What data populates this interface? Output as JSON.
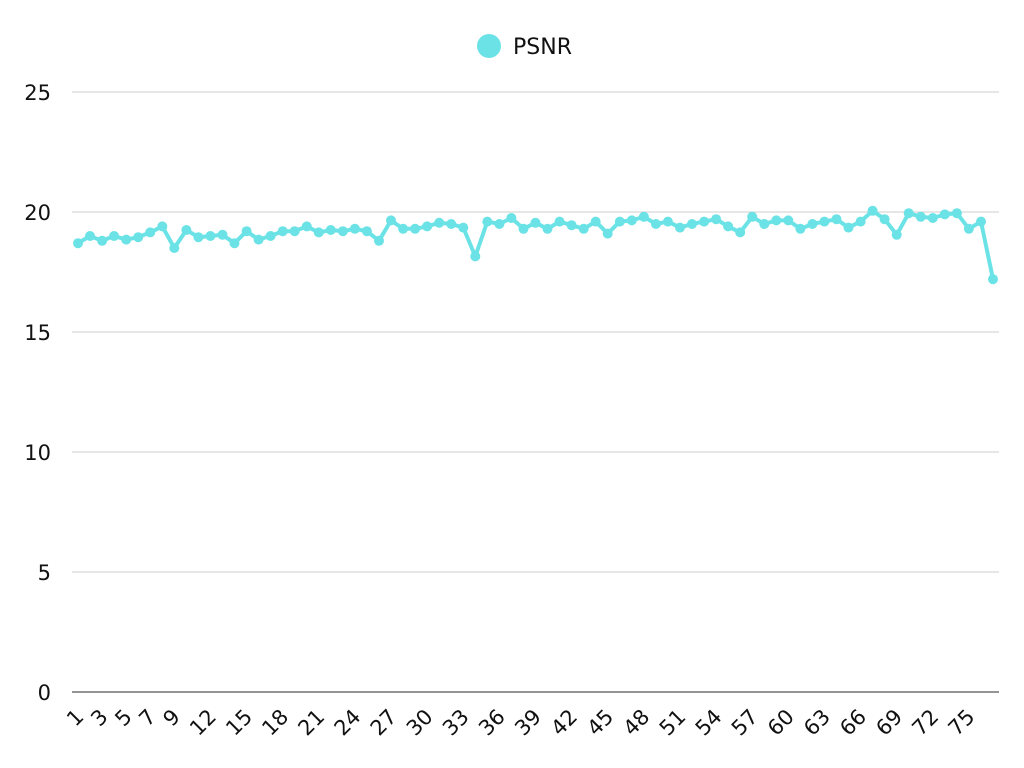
{
  "chart_data": {
    "type": "line",
    "title": "",
    "xlabel": "",
    "ylabel": "",
    "ylim": [
      0,
      25
    ],
    "y_ticks": [
      0,
      5,
      10,
      15,
      20,
      25
    ],
    "x_tick_labels": [
      1,
      3,
      5,
      7,
      9,
      12,
      15,
      18,
      21,
      24,
      27,
      30,
      33,
      36,
      39,
      42,
      45,
      48,
      51,
      54,
      57,
      60,
      63,
      66,
      69,
      72,
      75
    ],
    "grid": true,
    "legend_position": "top-center",
    "color": "#6be3e6",
    "series": [
      {
        "name": "PSNR",
        "x": [
          1,
          2,
          3,
          4,
          5,
          6,
          7,
          8,
          9,
          10,
          11,
          12,
          13,
          14,
          15,
          16,
          17,
          18,
          19,
          20,
          21,
          22,
          23,
          24,
          25,
          26,
          27,
          28,
          29,
          30,
          31,
          32,
          33,
          34,
          35,
          36,
          37,
          38,
          39,
          40,
          41,
          42,
          43,
          44,
          45,
          46,
          47,
          48,
          49,
          50,
          51,
          52,
          53,
          54,
          55,
          56,
          57,
          58,
          59,
          60,
          61,
          62,
          63,
          64,
          65,
          66,
          67,
          68,
          69,
          70,
          71,
          72,
          73,
          74,
          75,
          76,
          77
        ],
        "values": [
          18.7,
          19.0,
          18.8,
          19.0,
          18.85,
          18.95,
          19.15,
          19.4,
          18.5,
          19.25,
          18.95,
          19.0,
          19.05,
          18.7,
          19.2,
          18.85,
          19.0,
          19.2,
          19.2,
          19.4,
          19.15,
          19.25,
          19.2,
          19.3,
          19.2,
          18.8,
          19.65,
          19.3,
          19.3,
          19.4,
          19.55,
          19.5,
          19.35,
          18.15,
          19.6,
          19.5,
          19.75,
          19.3,
          19.55,
          19.3,
          19.6,
          19.45,
          19.3,
          19.6,
          19.1,
          19.6,
          19.65,
          19.8,
          19.5,
          19.6,
          19.35,
          19.5,
          19.6,
          19.7,
          19.4,
          19.15,
          19.8,
          19.5,
          19.65,
          19.65,
          19.3,
          19.5,
          19.6,
          19.7,
          19.35,
          19.6,
          20.05,
          19.7,
          19.05,
          19.95,
          19.8,
          19.75,
          19.9,
          19.95,
          19.3,
          19.6,
          17.2
        ]
      }
    ]
  }
}
